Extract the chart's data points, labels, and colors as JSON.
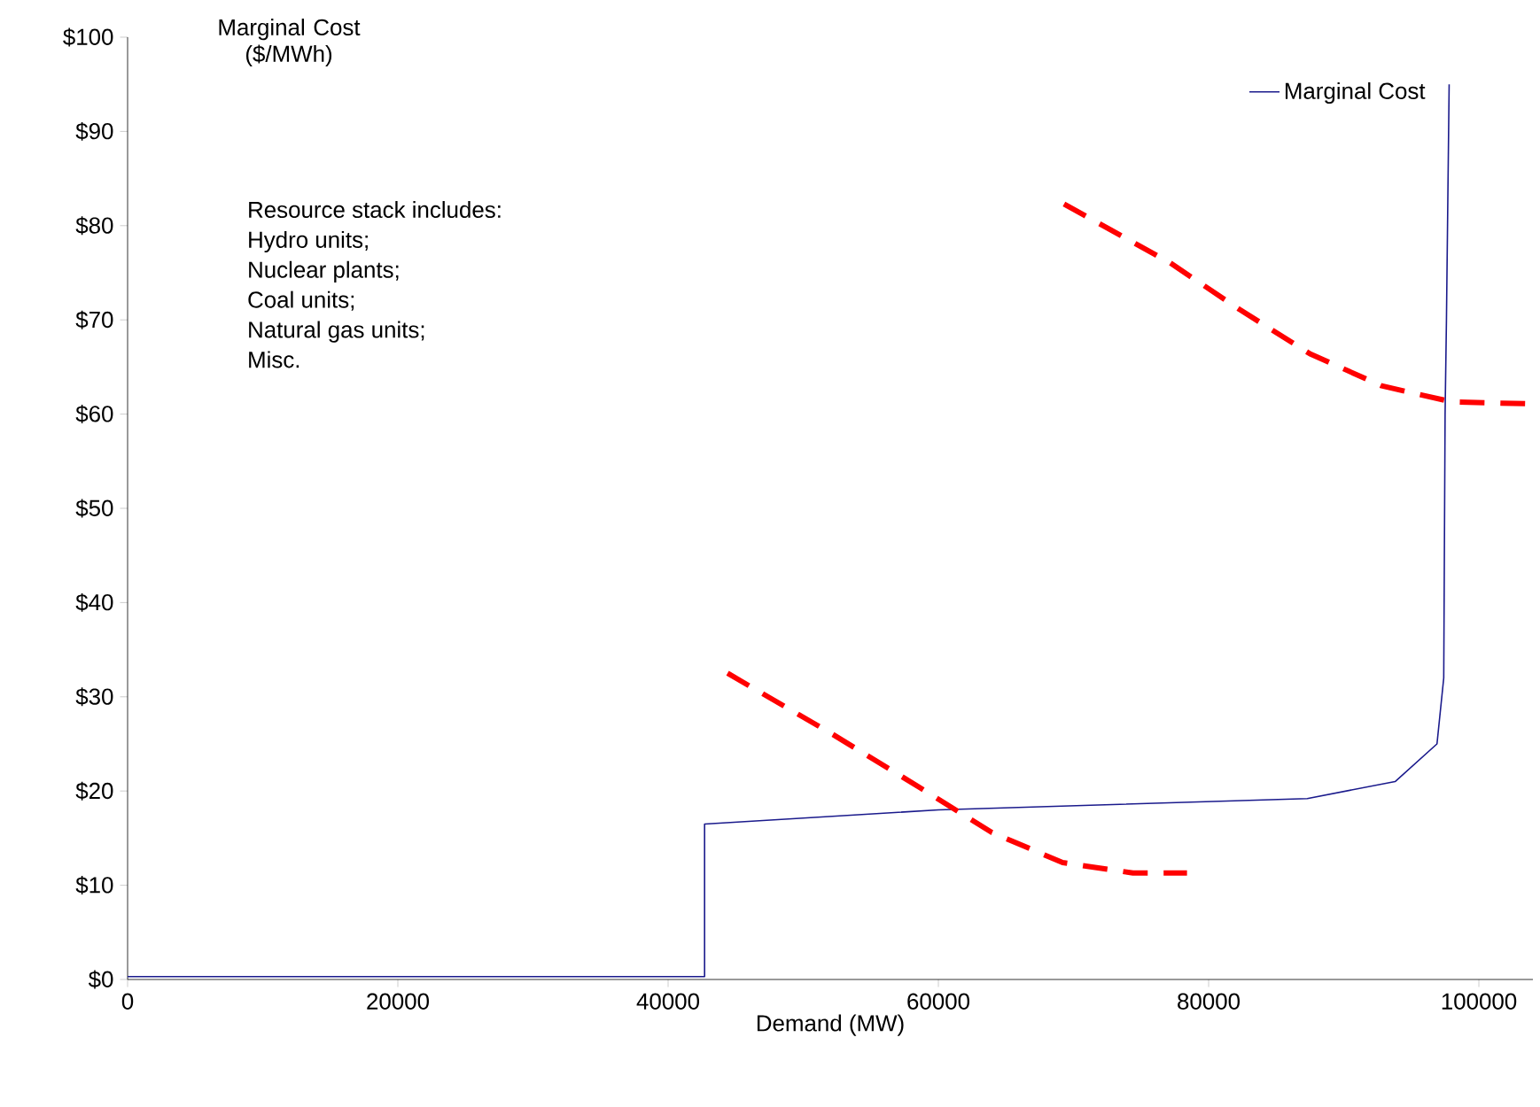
{
  "chart_data": {
    "type": "line",
    "xlabel": "Demand (MW)",
    "ylabel": "Marginal Cost ($/MWh)",
    "xlim": [
      0,
      104000
    ],
    "xticks": [
      0,
      20000,
      40000,
      60000,
      80000,
      100000
    ],
    "ylim": [
      0,
      100
    ],
    "yticks": [
      {
        "value": 0,
        "label": "$0"
      },
      {
        "value": 10,
        "label": "$10"
      },
      {
        "value": 20,
        "label": "$20"
      },
      {
        "value": 30,
        "label": "$30"
      },
      {
        "value": 40,
        "label": "$40"
      },
      {
        "value": 50,
        "label": "$50"
      },
      {
        "value": 60,
        "label": "$60"
      },
      {
        "value": 70,
        "label": "$70"
      },
      {
        "value": 80,
        "label": "$80"
      },
      {
        "value": 90,
        "label": "$90"
      },
      {
        "value": 100,
        "label": "$100"
      }
    ],
    "grid": false,
    "legend": "top right",
    "marker": "none",
    "annotations": [
      "Resource stack includes:",
      "Hydro units;",
      "Nuclear plants;",
      "Coal units;",
      "Natural gas units;",
      "Misc."
    ],
    "series": [
      {
        "name": "Marginal Cost",
        "color": "#1a1a8c",
        "line_style": "solid",
        "x": [
          0,
          42700,
          42700,
          60000,
          87300,
          93800,
          96900,
          97400,
          97500,
          97600,
          97800
        ],
        "values": [
          0.3,
          0.3,
          16.5,
          18,
          19.2,
          21,
          25,
          32,
          60,
          70,
          95
        ]
      },
      {
        "color": "#ff0000",
        "line_style": "dashed",
        "x": [
          44400,
          52200,
          58700,
          63960,
          69200,
          74400,
          78400
        ],
        "values": [
          32.5,
          26,
          20.3,
          15.6,
          12.4,
          11.3,
          11.3
        ]
      },
      {
        "color": "#ff0000",
        "line_style": "dashed",
        "x": [
          69300,
          77100,
          82300,
          87500,
          92800,
          98000,
          103500
        ],
        "values": [
          82.3,
          76.1,
          71.1,
          66.4,
          63,
          61.3,
          61.1
        ]
      }
    ]
  }
}
